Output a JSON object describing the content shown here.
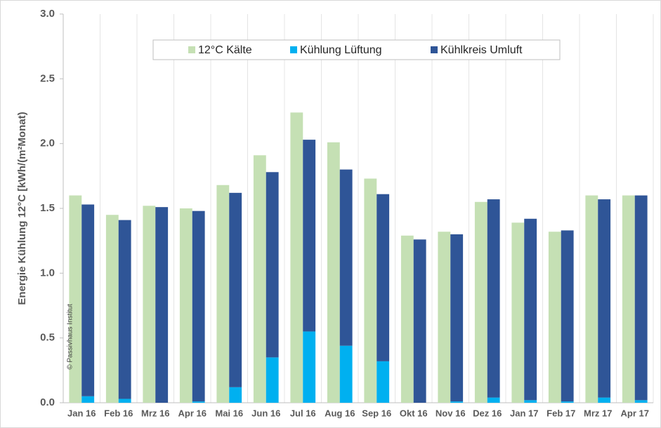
{
  "chart_data": {
    "type": "bar",
    "y_label": "Energie Kühlung 12°C [kWh/(m²Monat)",
    "annotation": "© Passivhaus Institut",
    "categories": [
      "Jan 16",
      "Feb 16",
      "Mrz 16",
      "Apr 16",
      "Mai 16",
      "Jun 16",
      "Jul 16",
      "Aug 16",
      "Sep 16",
      "Okt 16",
      "Nov 16",
      "Dez 16",
      "Jan 17",
      "Feb 17",
      "Mrz 17",
      "Apr 17"
    ],
    "series": [
      {
        "name": "12°C Kälte",
        "color": "#c5e0b4",
        "stack": "a",
        "values": [
          1.6,
          1.45,
          1.52,
          1.5,
          1.68,
          1.91,
          2.24,
          2.01,
          1.73,
          1.29,
          1.32,
          1.55,
          1.39,
          1.32,
          1.6,
          1.6
        ]
      },
      {
        "name": "Kühlung Lüftung",
        "color": "#00b0f0",
        "stack": "b",
        "values": [
          0.05,
          0.03,
          0,
          0.01,
          0.12,
          0.35,
          0.55,
          0.44,
          0.32,
          0,
          0.01,
          0.04,
          0.02,
          0.01,
          0.04,
          0.02
        ]
      },
      {
        "name": "Kühlkreis Umluft",
        "color": "#2f5597",
        "stack": "b",
        "values": [
          1.48,
          1.38,
          1.51,
          1.47,
          1.5,
          1.43,
          1.48,
          1.36,
          1.29,
          1.26,
          1.29,
          1.53,
          1.4,
          1.32,
          1.53,
          1.58
        ]
      }
    ],
    "ylim": [
      0,
      3
    ],
    "yticks": [
      {
        "value": 0,
        "label": "0.0"
      },
      0.5,
      {
        "value": 1,
        "label": "1.0"
      },
      1.5,
      {
        "value": 2,
        "label": "2.0"
      },
      2.5,
      {
        "value": 3,
        "label": "3.0"
      }
    ],
    "legend": "top"
  }
}
